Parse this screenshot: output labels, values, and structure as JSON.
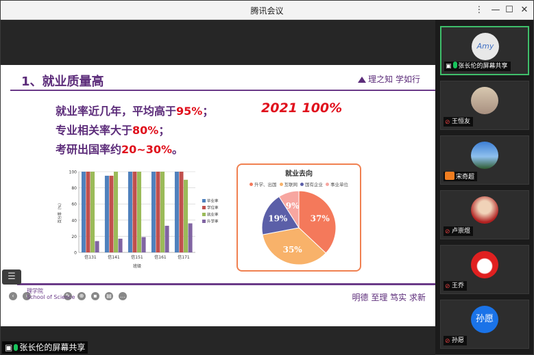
{
  "window": {
    "title": "腾讯会议",
    "controls": {
      "more": "⋮",
      "minimize": "—",
      "maximize": "☐",
      "close": "✕"
    }
  },
  "slide": {
    "title": "1、就业质量高",
    "motto_top": "理之知 学如行",
    "bullets": [
      {
        "text": "就业率近几年，平均高于",
        "highlight": "95%",
        "suffix": "；"
      },
      {
        "text": "专业相关率大于",
        "highlight": "80%",
        "suffix": "；"
      },
      {
        "text": "考研出国率约",
        "highlight": "20~30%",
        "suffix": "。"
      }
    ],
    "annotation": "2021 100%",
    "footer_motto": "明德 至理 笃实 求新",
    "footer_school_cn": "理学院",
    "footer_school_en": "School of Science"
  },
  "chart_data": [
    {
      "type": "bar",
      "categories": [
        "信131",
        "信141",
        "信151",
        "信161",
        "信171"
      ],
      "series": [
        {
          "name": "毕业率",
          "color": "#4f81bd",
          "values": [
            100,
            95,
            100,
            100,
            100
          ]
        },
        {
          "name": "学位率",
          "color": "#c0504d",
          "values": [
            100,
            95,
            100,
            100,
            100
          ]
        },
        {
          "name": "就业率",
          "color": "#9bbb59",
          "values": [
            100,
            100,
            100,
            100,
            90
          ]
        },
        {
          "name": "升学率",
          "color": "#8064a2",
          "values": [
            14,
            17,
            19,
            33,
            36
          ]
        }
      ],
      "ylim": [
        0,
        100
      ],
      "yticks": [
        "0",
        "20",
        "40",
        "60",
        "80",
        "100"
      ],
      "ylabel": "百分率（%）",
      "xlabel": "班级",
      "legend": "right",
      "grid": true
    },
    {
      "type": "pie",
      "title": "就业去向",
      "labels": [
        "升学、出国",
        "互联网",
        "国有企业",
        "事业单位"
      ],
      "values": [
        37,
        35,
        19,
        9
      ],
      "value_labels": [
        "37%",
        "35%",
        "19%",
        "9%"
      ],
      "colors": [
        "#f4795b",
        "#f8b26a",
        "#5b5fa8",
        "#f7a6a0"
      ],
      "legend": "top"
    }
  ],
  "stage": {
    "list_button": "☰",
    "screen_share_label": "张长伦的屏幕共享"
  },
  "participants": [
    {
      "name": "张长伦的屏幕共享",
      "avatar_text": "Amy",
      "mic": "on",
      "active": true
    },
    {
      "name": "王恒友",
      "mic": "muted"
    },
    {
      "name": "宋奇超",
      "mic": "none"
    },
    {
      "name": "卢崇煜",
      "mic": "muted"
    },
    {
      "name": "王乔",
      "mic": "muted"
    },
    {
      "name": "孙愿",
      "avatar_text": "孙愿",
      "avatar_color": "#1a73e8",
      "mic": "muted"
    }
  ]
}
